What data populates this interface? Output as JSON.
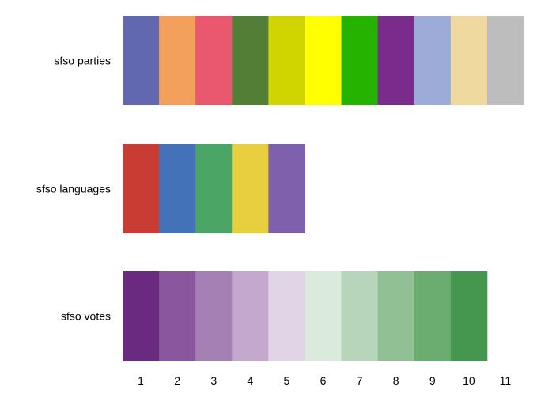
{
  "chart_data": {
    "type": "heatmap",
    "title": "",
    "xlabel": "",
    "ylabel": "",
    "x_ticks": [
      "1",
      "2",
      "3",
      "4",
      "5",
      "6",
      "7",
      "8",
      "9",
      "10",
      "11"
    ],
    "xlim": [
      0.5,
      11.5
    ],
    "grid": false,
    "rows": [
      {
        "name": "sfso parties",
        "colors": [
          "#6268b0",
          "#f4a05d",
          "#ea5870",
          "#527f35",
          "#d0d500",
          "#ffff00",
          "#25b300",
          "#7a2c8c",
          "#9dabd9",
          "#f0d99e",
          "#bdbdbd"
        ]
      },
      {
        "name": "sfso languages",
        "colors": [
          "#c83c33",
          "#4472b9",
          "#4ba564",
          "#e8cf40",
          "#7f60ac"
        ]
      },
      {
        "name": "sfso votes",
        "colors": [
          "#6a2a80",
          "#8a579e",
          "#a580b4",
          "#c4a8ce",
          "#e0d4e6",
          "#daeadc",
          "#b6d5ba",
          "#90c093",
          "#6bad70",
          "#45974f"
        ]
      }
    ]
  }
}
